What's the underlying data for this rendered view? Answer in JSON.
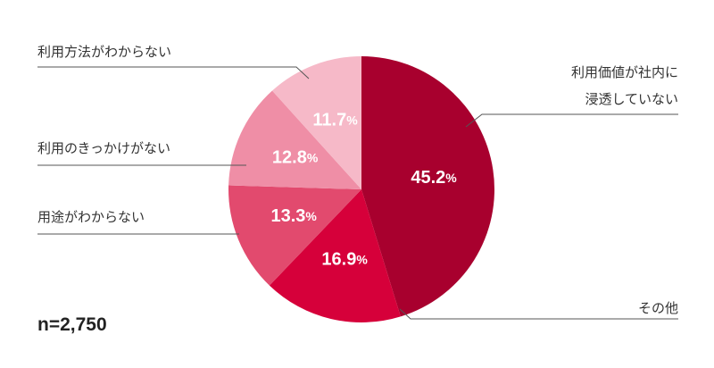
{
  "chart_data": {
    "type": "pie",
    "categories": [
      "利用価値が社内に\n浸透していない",
      "その他",
      "用途がわからない",
      "利用のきっかけがない",
      "利用方法がわからない"
    ],
    "values": [
      45.2,
      16.9,
      13.3,
      12.8,
      11.7
    ],
    "value_labels": [
      "45.2%",
      "16.9%",
      "13.3%",
      "12.8%",
      "11.7%"
    ],
    "colors": [
      "#a8002e",
      "#d6003a",
      "#e24a6e",
      "#ef8ea6",
      "#f6b9c8"
    ],
    "note": "n=2,750"
  }
}
